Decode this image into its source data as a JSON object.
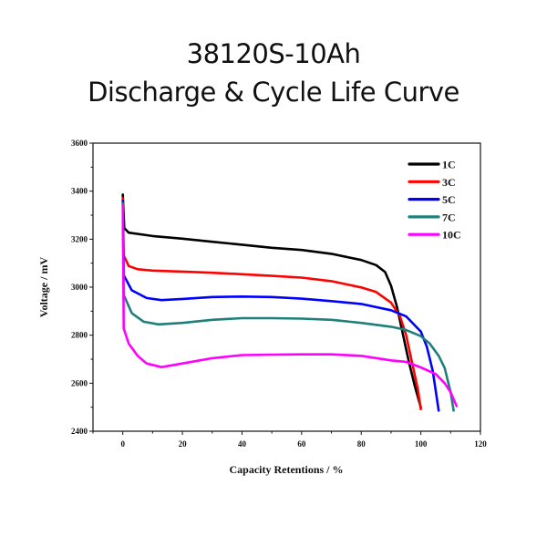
{
  "title_line1": "38120S-10Ah",
  "title_line2": "Discharge & Cycle Life Curve",
  "chart_data": {
    "type": "line",
    "title": "38120S-10Ah Discharge & Cycle Life Curve",
    "xlabel": "Capacity Retentions / %",
    "ylabel": "Voltage / mV",
    "xlim": [
      -10,
      120
    ],
    "ylim": [
      2400,
      3600
    ],
    "xticks": [
      0,
      20,
      40,
      60,
      80,
      100,
      120
    ],
    "yticks": [
      2400,
      2600,
      2800,
      3000,
      3200,
      3400,
      3600
    ],
    "grid": false,
    "legend_position": "top-right",
    "series": [
      {
        "name": "1C",
        "color": "#000000",
        "x": [
          0,
          0.5,
          2,
          10,
          20,
          30,
          40,
          50,
          60,
          70,
          80,
          85,
          88,
          90,
          92,
          94,
          96,
          98,
          100
        ],
        "y": [
          3386,
          3246,
          3227,
          3213,
          3202,
          3189,
          3177,
          3164,
          3155,
          3139,
          3113,
          3092,
          3063,
          3006,
          2917,
          2803,
          2689,
          2587,
          2499
        ]
      },
      {
        "name": "3C",
        "color": "#ff0000",
        "x": [
          0,
          0.3,
          2,
          5,
          10,
          20,
          30,
          40,
          50,
          60,
          70,
          80,
          85,
          90,
          93,
          95,
          97,
          99,
          100
        ],
        "y": [
          3370,
          3132,
          3088,
          3075,
          3069,
          3065,
          3060,
          3054,
          3047,
          3040,
          3025,
          2999,
          2980,
          2936,
          2879,
          2803,
          2689,
          2575,
          2492
        ]
      },
      {
        "name": "5C",
        "color": "#0000ff",
        "x": [
          0,
          0.3,
          3,
          8,
          13,
          20,
          30,
          40,
          50,
          60,
          70,
          80,
          90,
          95,
          100,
          102,
          104,
          106
        ],
        "y": [
          3360,
          3050,
          2987,
          2955,
          2946,
          2951,
          2959,
          2961,
          2959,
          2952,
          2942,
          2930,
          2904,
          2879,
          2815,
          2752,
          2651,
          2486
        ]
      },
      {
        "name": "7C",
        "color": "#1f7f7a",
        "x": [
          0,
          0.3,
          3,
          7,
          12,
          20,
          30,
          40,
          50,
          60,
          70,
          80,
          90,
          95,
          100,
          103,
          106,
          108,
          110,
          111
        ],
        "y": [
          3350,
          2968,
          2892,
          2856,
          2845,
          2851,
          2864,
          2871,
          2871,
          2869,
          2864,
          2851,
          2835,
          2822,
          2796,
          2765,
          2714,
          2663,
          2562,
          2486
        ]
      },
      {
        "name": "10C",
        "color": "#ff00ff",
        "x": [
          0,
          0.3,
          2,
          5,
          8,
          13,
          20,
          30,
          40,
          50,
          60,
          70,
          80,
          90,
          95,
          100,
          105,
          108,
          110,
          112
        ],
        "y": [
          3340,
          2828,
          2765,
          2714,
          2682,
          2667,
          2682,
          2704,
          2717,
          2719,
          2720,
          2720,
          2714,
          2695,
          2689,
          2666,
          2638,
          2600,
          2562,
          2505
        ]
      }
    ]
  }
}
